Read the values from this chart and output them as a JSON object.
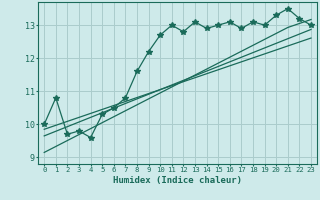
{
  "title": "",
  "xlabel": "Humidex (Indice chaleur)",
  "ylabel": "",
  "bg_color": "#ceeaea",
  "line_color": "#1a6b5a",
  "grid_color": "#aacccc",
  "xlim": [
    -0.5,
    23.5
  ],
  "ylim": [
    8.8,
    13.7
  ],
  "x": [
    0,
    1,
    2,
    3,
    4,
    5,
    6,
    7,
    8,
    9,
    10,
    11,
    12,
    13,
    14,
    15,
    16,
    17,
    18,
    19,
    20,
    21,
    22,
    23
  ],
  "y_data": [
    10.0,
    10.8,
    9.7,
    9.8,
    9.6,
    10.3,
    10.5,
    10.8,
    11.6,
    12.2,
    12.7,
    13.0,
    12.8,
    13.1,
    12.9,
    13.0,
    13.1,
    12.9,
    13.1,
    13.0,
    13.3,
    13.5,
    13.2,
    13.0
  ],
  "y_trend1": [
    9.85,
    9.97,
    10.09,
    10.21,
    10.33,
    10.45,
    10.57,
    10.69,
    10.81,
    10.93,
    11.05,
    11.17,
    11.29,
    11.41,
    11.53,
    11.65,
    11.77,
    11.89,
    12.01,
    12.13,
    12.25,
    12.37,
    12.49,
    12.61
  ],
  "y_trend2": [
    9.65,
    9.79,
    9.93,
    10.07,
    10.21,
    10.35,
    10.49,
    10.63,
    10.77,
    10.91,
    11.05,
    11.19,
    11.33,
    11.47,
    11.61,
    11.75,
    11.89,
    12.03,
    12.17,
    12.31,
    12.45,
    12.59,
    12.73,
    12.87
  ],
  "y_trend3": [
    9.15,
    9.33,
    9.51,
    9.69,
    9.87,
    10.05,
    10.23,
    10.41,
    10.59,
    10.77,
    10.95,
    11.13,
    11.31,
    11.49,
    11.67,
    11.85,
    12.03,
    12.21,
    12.39,
    12.57,
    12.75,
    12.93,
    13.05,
    13.17
  ],
  "xticks": [
    0,
    1,
    2,
    3,
    4,
    5,
    6,
    7,
    8,
    9,
    10,
    11,
    12,
    13,
    14,
    15,
    16,
    17,
    18,
    19,
    20,
    21,
    22,
    23
  ],
  "yticks": [
    9,
    10,
    11,
    12,
    13
  ],
  "marker": "*",
  "markersize": 4,
  "linewidth": 0.9
}
